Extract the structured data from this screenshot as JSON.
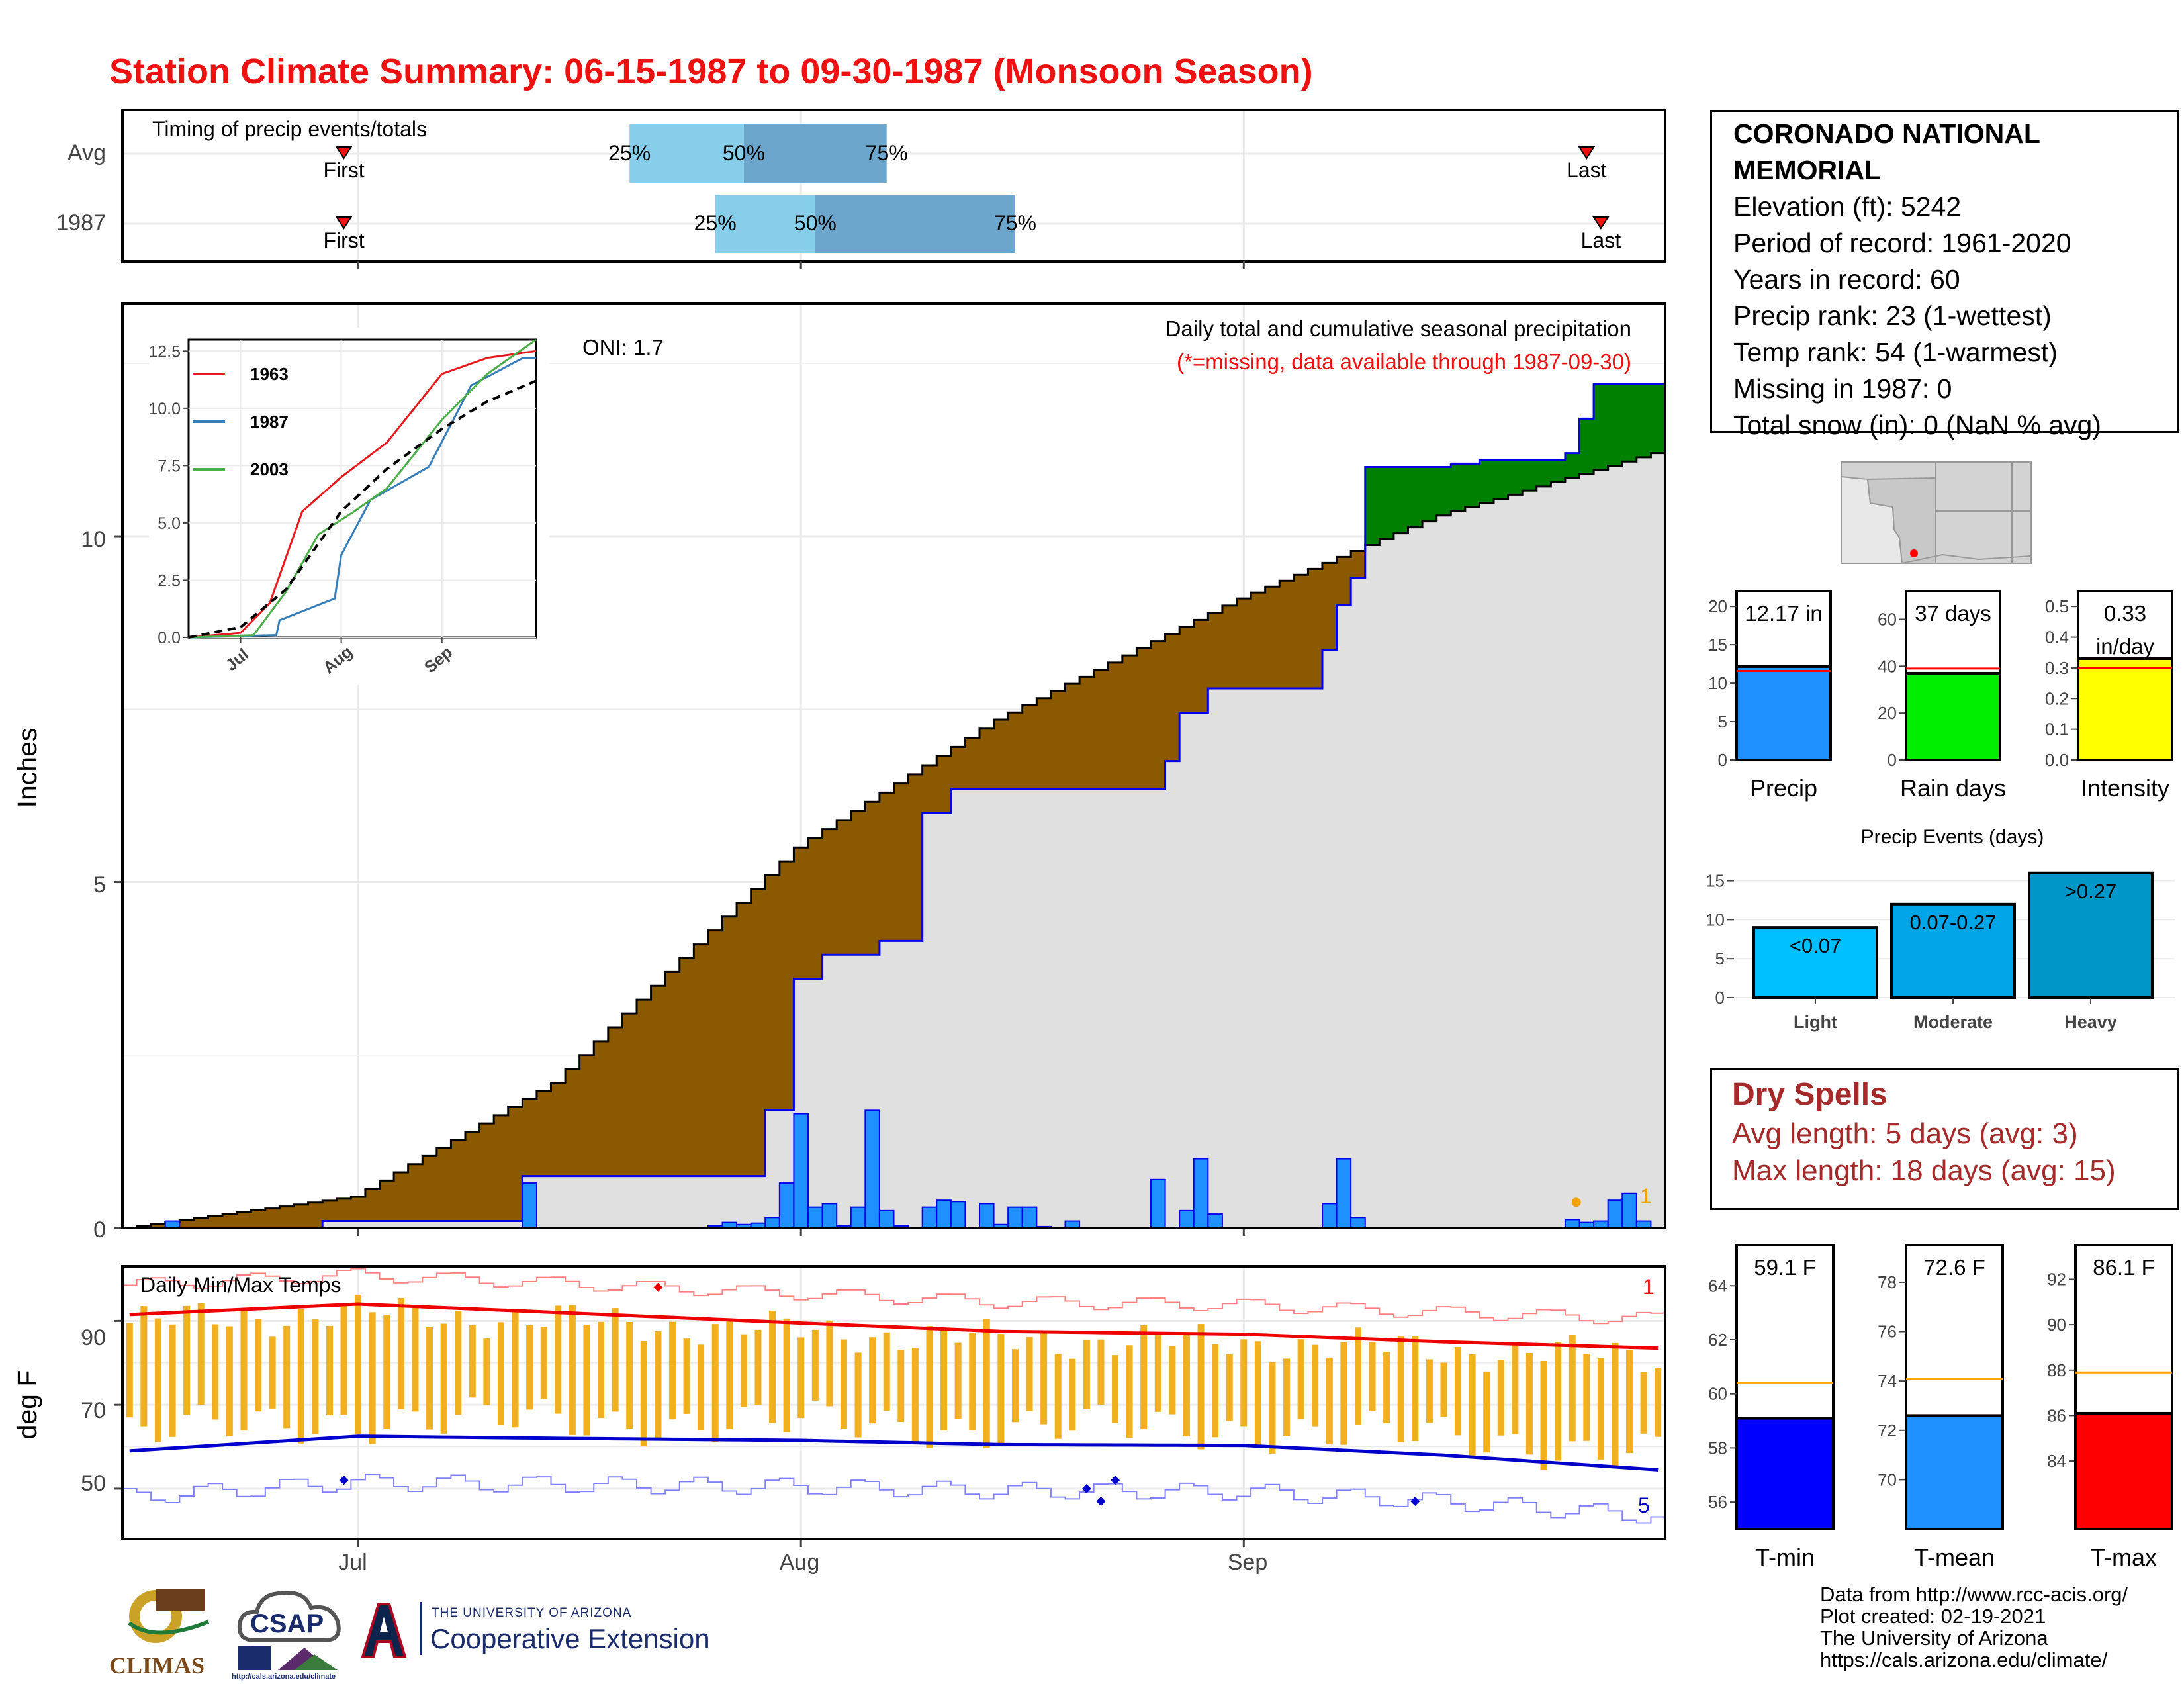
{
  "title": "Station Climate Summary: 06-15-1987 to 09-30-1987 (Monsoon Season)",
  "timing": {
    "label": "Timing of precip events/totals",
    "rows": [
      {
        "name": "Avg",
        "first": "2021-06-30",
        "p25": "2021-07-20",
        "p50": "2021-07-28",
        "p75": "2021-08-07",
        "last": "2021-09-25"
      },
      {
        "name": "1987",
        "first": "2021-06-30",
        "p25": "2021-07-26",
        "p50": "2021-08-02",
        "p75": "2021-08-16",
        "last": "2021-09-26"
      }
    ],
    "labels": {
      "first": "First",
      "last": "Last",
      "p25": "25%",
      "p50": "50%",
      "p75": "75%"
    }
  },
  "precip_panel": {
    "title": "Daily total and cumulative seasonal precipitation",
    "subtitle": "(*=missing, data available through 1987-09-30)",
    "oni": "ONI: 1.7",
    "ylabel": "Inches",
    "yticks": [
      "0",
      "5",
      "10"
    ],
    "missing_count": "1"
  },
  "inset": {
    "yticks": [
      "0.0",
      "2.5",
      "5.0",
      "7.5",
      "10.0",
      "12.5"
    ],
    "xticks": [
      "Jul",
      "Aug",
      "Sep"
    ],
    "legend": [
      {
        "year": "1963",
        "color": "#e41a1c"
      },
      {
        "year": "1987",
        "color": "#377eb8"
      },
      {
        "year": "2003",
        "color": "#4daf4a"
      }
    ]
  },
  "temp_panel": {
    "title": "Daily Min/Max Temps",
    "ylabel": "deg F",
    "yticks": [
      "50",
      "70",
      "90"
    ],
    "max_missing": "1",
    "min_missing": "5"
  },
  "xticks": [
    "Jul",
    "Aug",
    "Sep"
  ],
  "station": {
    "name_line1": "CORONADO NATIONAL",
    "name_line2": "MEMORIAL",
    "elevation": "Elevation (ft): 5242",
    "period": "Period of record: 1961-2020",
    "years": "Years in record: 60",
    "precip_rank": "Precip rank: 23 (1-wettest)",
    "temp_rank": "Temp rank: 54 (1-warmest)",
    "missing": "Missing in 1987: 0",
    "snow": "Total snow (in): 0 (NaN % avg)"
  },
  "summary_bars": [
    {
      "label": "Precip",
      "value_text": "12.17 in",
      "value": 12.17,
      "avg": 11.6,
      "ylim": [
        0,
        22
      ],
      "yticks": [
        "0",
        "5",
        "10",
        "15",
        "20"
      ],
      "tickvals": [
        0,
        5,
        10,
        15,
        20
      ],
      "color": "#1e90ff"
    },
    {
      "label": "Rain days",
      "value_text": "37 days",
      "value": 37,
      "avg": 39,
      "ylim": [
        0,
        72
      ],
      "yticks": [
        "0",
        "20",
        "40",
        "60"
      ],
      "tickvals": [
        0,
        20,
        40,
        60
      ],
      "color": "#00ee00"
    },
    {
      "label": "Intensity",
      "value_text": "0.33",
      "value_text2": "in/day",
      "value": 0.33,
      "avg": 0.3,
      "ylim": [
        0,
        0.55
      ],
      "yticks": [
        "0.0",
        "0.1",
        "0.2",
        "0.3",
        "0.4",
        "0.5"
      ],
      "tickvals": [
        0,
        0.1,
        0.2,
        0.3,
        0.4,
        0.5
      ],
      "color": "#ffff00"
    }
  ],
  "precip_events": {
    "title": "Precip Events (days)",
    "yticks": [
      "0",
      "5",
      "10",
      "15"
    ],
    "tickvals": [
      0,
      5,
      10,
      15
    ],
    "ylim": [
      0,
      17
    ],
    "bars": [
      {
        "label": "Light",
        "range": "<0.07",
        "value": 9,
        "color": "#00bfff"
      },
      {
        "label": "Moderate",
        "range": "0.07-0.27",
        "value": 12,
        "color": "#00a5e8"
      },
      {
        "label": "Heavy",
        "range": ">0.27",
        "value": 16,
        "color": "#0096c7"
      }
    ]
  },
  "dry_spells": {
    "title": "Dry Spells",
    "avg_length": "Avg length: 5 days (avg: 3)",
    "max_length": "Max length: 18 days (avg: 15)"
  },
  "temp_bars": [
    {
      "label": "T-min",
      "value_text": "59.1 F",
      "value": 59.1,
      "avg": 60.4,
      "ylim": [
        55,
        65.5
      ],
      "yticks": [
        "56",
        "58",
        "60",
        "62",
        "64"
      ],
      "tickvals": [
        56,
        58,
        60,
        62,
        64
      ],
      "color": "#0000ff"
    },
    {
      "label": "T-mean",
      "value_text": "72.6 F",
      "value": 72.6,
      "avg": 74.1,
      "ylim": [
        68,
        79.5
      ],
      "yticks": [
        "70",
        "72",
        "74",
        "76",
        "78"
      ],
      "tickvals": [
        70,
        72,
        74,
        76,
        78
      ],
      "color": "#1e90ff"
    },
    {
      "label": "T-max",
      "value_text": "86.1 F",
      "value": 86.1,
      "avg": 87.9,
      "ylim": [
        81,
        93.5
      ],
      "yticks": [
        "84",
        "86",
        "88",
        "90",
        "92"
      ],
      "tickvals": [
        84,
        86,
        88,
        90,
        92
      ],
      "color": "#ff0000"
    }
  ],
  "footer": {
    "line1": "Data from http://www.rcc-acis.org/",
    "line2": "Plot created: 02-19-2021",
    "line3": "The University of Arizona",
    "line4": "https://cals.arizona.edu/climate/"
  },
  "logos": {
    "climas": "CLIMAS",
    "csap": "CSAP",
    "csap_url": "http://cals.arizona.edu/climate",
    "ua_small": "THE UNIVERSITY OF ARIZONA",
    "ua_big": "Cooperative Extension"
  },
  "chart_data": [
    {
      "type": "area",
      "name": "cumulative precipitation",
      "x_range": [
        "1987-06-15",
        "1987-09-30"
      ],
      "y_unit": "Inches",
      "ylim": [
        0,
        12.9
      ],
      "series": [
        {
          "name": "1987",
          "x": [
            "1987-06-15",
            "1987-06-29",
            "1987-07-12",
            "1987-07-13",
            "1987-07-29",
            "1987-07-30",
            "1987-08-01",
            "1987-08-03",
            "1987-08-05",
            "1987-08-07",
            "1987-08-10",
            "1987-08-12",
            "1987-08-26",
            "1987-08-27",
            "1987-08-28",
            "1987-08-30",
            "1987-09-01",
            "1987-09-07",
            "1987-09-08",
            "1987-09-09",
            "1987-09-10",
            "1987-09-15",
            "1987-09-16",
            "1987-09-18",
            "1987-09-24",
            "1987-09-25",
            "1987-09-26"
          ],
          "values": [
            0,
            0.1,
            0.1,
            0.75,
            0.75,
            1.7,
            3.6,
            3.95,
            3.95,
            4.15,
            6.0,
            6.35,
            6.35,
            6.75,
            7.45,
            7.8,
            7.8,
            8.35,
            9.0,
            9.4,
            11.0,
            11.0,
            11.05,
            11.1,
            11.2,
            11.7,
            12.2
          ]
        },
        {
          "name": "Avg",
          "x": [
            "1987-06-15",
            "1987-07-01",
            "1987-07-15",
            "1987-08-01",
            "1987-08-15",
            "1987-09-01",
            "1987-09-15",
            "1987-09-30"
          ],
          "values": [
            0,
            0.45,
            2.1,
            5.5,
            7.35,
            9.1,
            10.3,
            11.2
          ]
        }
      ]
    },
    {
      "type": "bar",
      "name": "daily precipitation",
      "y_unit": "Inches",
      "x": [
        "1987-06-18",
        "1987-07-13",
        "1987-07-26",
        "1987-07-27",
        "1987-07-28",
        "1987-07-29",
        "1987-07-30",
        "1987-07-31",
        "1987-08-01",
        "1987-08-02",
        "1987-08-03",
        "1987-08-04",
        "1987-08-05",
        "1987-08-06",
        "1987-08-07",
        "1987-08-08",
        "1987-08-10",
        "1987-08-11",
        "1987-08-12",
        "1987-08-14",
        "1987-08-15",
        "1987-08-16",
        "1987-08-17",
        "1987-08-18",
        "1987-08-20",
        "1987-08-26",
        "1987-08-28",
        "1987-08-29",
        "1987-08-30",
        "1987-09-07",
        "1987-09-08",
        "1987-09-09",
        "1987-09-24",
        "1987-09-25",
        "1987-09-26",
        "1987-09-27",
        "1987-09-28",
        "1987-09-29"
      ],
      "values": [
        0.1,
        0.65,
        0.03,
        0.08,
        0.05,
        0.07,
        0.15,
        0.65,
        1.65,
        0.3,
        0.35,
        0.03,
        0.3,
        1.7,
        0.25,
        0.03,
        0.3,
        0.4,
        0.38,
        0.35,
        0.05,
        0.3,
        0.3,
        0.02,
        0.1,
        0.7,
        0.25,
        1.0,
        0.2,
        0.35,
        1.0,
        0.15,
        0.12,
        0.08,
        0.1,
        0.4,
        0.5,
        0.1
      ]
    },
    {
      "type": "line",
      "name": "daily min/max temps",
      "y_unit": "deg F",
      "ylim": [
        38,
        103
      ],
      "x_range": [
        "1987-06-15",
        "1987-09-30"
      ],
      "series": [
        {
          "name": "Avg max",
          "x": [
            "1987-06-15",
            "1987-07-01",
            "1987-07-15",
            "1987-08-01",
            "1987-08-15",
            "1987-09-01",
            "1987-09-15",
            "1987-09-30"
          ],
          "values": [
            91.5,
            94,
            92,
            89.5,
            87.5,
            86.8,
            85,
            83.5
          ]
        },
        {
          "name": "Avg min",
          "x": [
            "1987-06-15",
            "1987-07-01",
            "1987-07-15",
            "1987-08-01",
            "1987-08-15",
            "1987-09-01",
            "1987-09-15",
            "1987-09-30"
          ],
          "values": [
            59,
            62.5,
            62,
            61.5,
            60.5,
            60.3,
            58,
            54.5
          ]
        }
      ]
    },
    {
      "type": "inset-line",
      "name": "cumulative precipitation comparison",
      "series": [
        {
          "name": "1963",
          "x": [
            "1987-06-15",
            "1987-07-01",
            "1987-07-10",
            "1987-07-20",
            "1987-08-01",
            "1987-08-15",
            "1987-09-01",
            "1987-09-15",
            "1987-09-30"
          ],
          "values": [
            0,
            0.2,
            1.5,
            5.5,
            7,
            8.5,
            11.5,
            12.2,
            12.5
          ]
        },
        {
          "name": "1987",
          "x": [
            "1987-06-15",
            "1987-07-12",
            "1987-07-13",
            "1987-07-30",
            "1987-08-01",
            "1987-08-10",
            "1987-08-28",
            "1987-09-10",
            "1987-09-26"
          ],
          "values": [
            0,
            0.1,
            0.75,
            1.7,
            3.6,
            6.0,
            7.45,
            11.0,
            12.2
          ]
        },
        {
          "name": "2003",
          "x": [
            "1987-06-15",
            "1987-07-05",
            "1987-07-15",
            "1987-07-25",
            "1987-08-05",
            "1987-08-15",
            "1987-09-01",
            "1987-09-15",
            "1987-09-30"
          ],
          "values": [
            0,
            0.1,
            2,
            4.5,
            5.5,
            6.5,
            9.5,
            11.5,
            13
          ]
        },
        {
          "name": "Avg",
          "x": [
            "1987-06-15",
            "1987-07-01",
            "1987-07-15",
            "1987-08-01",
            "1987-08-15",
            "1987-09-01",
            "1987-09-15",
            "1987-09-30"
          ],
          "values": [
            0,
            0.45,
            2.1,
            5.5,
            7.35,
            9.1,
            10.3,
            11.2
          ]
        }
      ]
    }
  ]
}
